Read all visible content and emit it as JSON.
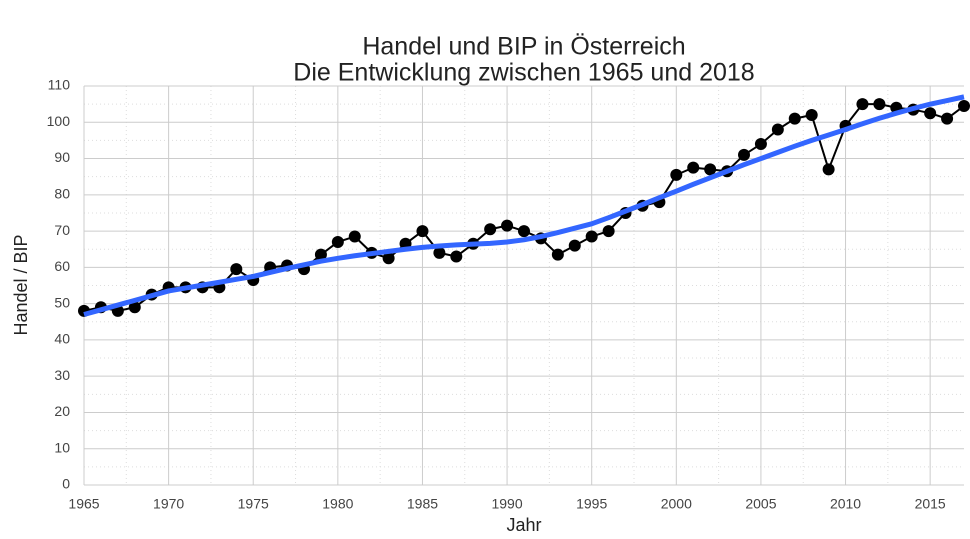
{
  "chart_data": {
    "type": "line",
    "title": "Handel und BIP in Österreich",
    "subtitle": "Die Entwicklung zwischen 1965 und 2018",
    "x_label": "Jahr",
    "y_label": "Handel / BIP",
    "x": [
      1965,
      1966,
      1967,
      1968,
      1969,
      1970,
      1971,
      1972,
      1973,
      1974,
      1975,
      1976,
      1977,
      1978,
      1979,
      1980,
      1981,
      1982,
      1983,
      1984,
      1985,
      1986,
      1987,
      1988,
      1989,
      1990,
      1991,
      1992,
      1993,
      1994,
      1995,
      1996,
      1997,
      1998,
      1999,
      2000,
      2001,
      2002,
      2003,
      2004,
      2005,
      2006,
      2007,
      2008,
      2009,
      2010,
      2011,
      2012,
      2013,
      2014,
      2015,
      2016,
      2017
    ],
    "values": [
      48,
      49,
      48,
      49,
      52.5,
      54.5,
      54.5,
      54.5,
      54.5,
      59.5,
      56.5,
      60,
      60.5,
      59.5,
      63.5,
      67,
      68.5,
      64,
      62.5,
      66.5,
      70,
      64,
      63,
      66.5,
      70.5,
      71.5,
      70,
      68,
      63.5,
      66,
      68.5,
      70,
      75,
      77,
      78,
      85.5,
      87.5,
      87,
      86.5,
      91,
      94,
      98,
      101,
      102,
      87,
      99,
      105,
      105,
      104,
      103.5,
      102.5,
      101,
      104.5
    ],
    "color": "#000000",
    "smooth": {
      "color": "#3366ff",
      "values": [
        47,
        48.3,
        49.6,
        50.9,
        52.2,
        53.5,
        54.3,
        55.1,
        55.9,
        56.7,
        57.5,
        58.6,
        59.7,
        60.7,
        61.7,
        62.5,
        63.2,
        63.8,
        64.4,
        65,
        65.5,
        65.9,
        66.2,
        66.4,
        66.6,
        67,
        67.6,
        68.5,
        69.6,
        70.8,
        72,
        73.7,
        75.5,
        77.3,
        79.2,
        81,
        82.9,
        84.7,
        86.5,
        88.3,
        90,
        91.7,
        93.4,
        95,
        96.5,
        98,
        99.6,
        101.1,
        102.5,
        103.8,
        105,
        106,
        107
      ]
    },
    "xlim": [
      1965,
      2017
    ],
    "xticks": [
      1965,
      1970,
      1975,
      1980,
      1985,
      1990,
      1995,
      2000,
      2005,
      2010,
      2015
    ],
    "ylim": [
      0,
      110
    ],
    "yticks": [
      0,
      10,
      20,
      30,
      40,
      50,
      60,
      70,
      80,
      90,
      100,
      110
    ],
    "grid": true
  }
}
